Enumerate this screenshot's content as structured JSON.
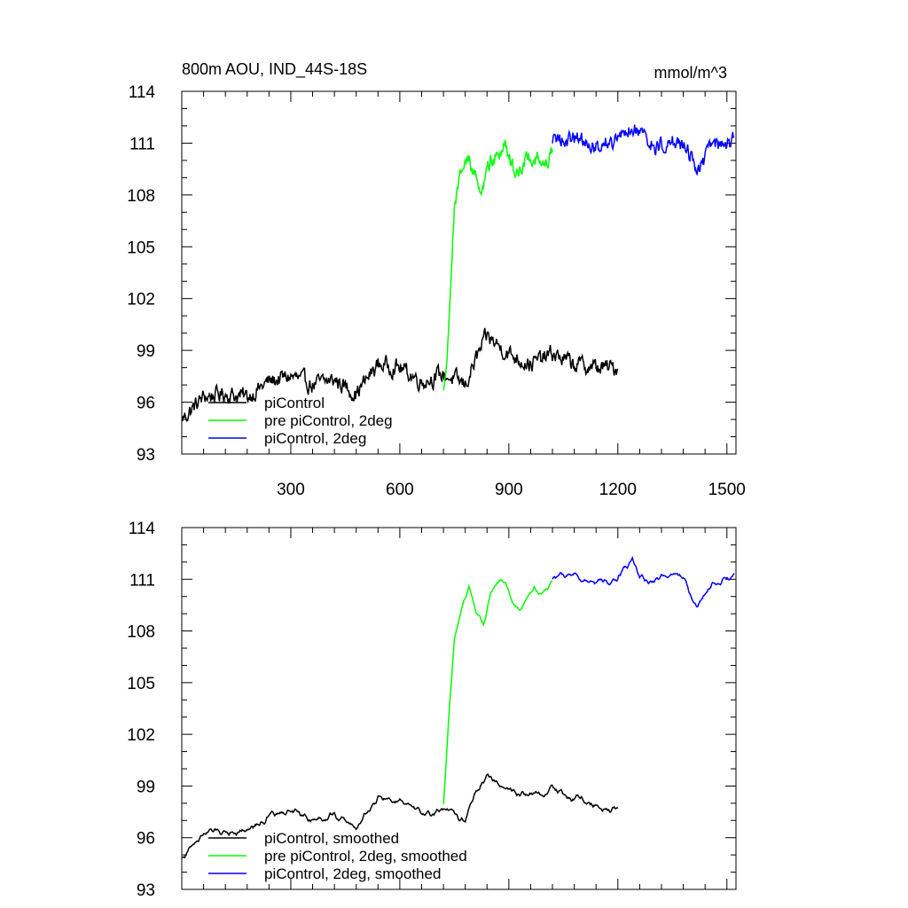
{
  "chart_data": [
    {
      "type": "line",
      "title": "800m AOU, IND_44S-18S",
      "units": "mmol/m^3",
      "xlim": [
        0,
        1525
      ],
      "ylim": [
        93,
        114
      ],
      "yticks": [
        93,
        96,
        99,
        102,
        105,
        108,
        111,
        114
      ],
      "xticks": [
        300,
        600,
        900,
        1200,
        1500
      ],
      "series": [
        {
          "name": "piControl",
          "color": "#000000",
          "x_range": [
            0,
            1200
          ],
          "x": [
            0,
            60,
            120,
            180,
            240,
            300,
            360,
            420,
            480,
            540,
            600,
            660,
            720,
            780,
            810,
            840,
            900,
            960,
            1020,
            1080,
            1140,
            1200
          ],
          "y": [
            95.0,
            96.3,
            96.5,
            96.3,
            97.2,
            97.5,
            97.0,
            97.3,
            96.5,
            98.2,
            98.0,
            97.2,
            97.6,
            97.0,
            98.5,
            99.8,
            98.8,
            98.2,
            98.8,
            98.2,
            98.0,
            98.0
          ],
          "noise": 0.75
        },
        {
          "name": "pre piControl, 2deg",
          "color": "#00ff00",
          "x_range": [
            720,
            1020
          ],
          "x": [
            720,
            730,
            740,
            750,
            770,
            790,
            810,
            830,
            850,
            870,
            890,
            910,
            930,
            950,
            970,
            990,
            1010,
            1020
          ],
          "y": [
            97.0,
            99.0,
            103.0,
            107.5,
            109.5,
            110.2,
            109.2,
            108.3,
            110.0,
            110.5,
            111.0,
            109.5,
            109.5,
            110.0,
            110.4,
            109.9,
            110.3,
            110.8
          ],
          "noise": 0.75
        },
        {
          "name": "piControl, 2deg",
          "color": "#0000ff",
          "x_range": [
            1020,
            1520
          ],
          "x": [
            1020,
            1080,
            1140,
            1200,
            1240,
            1260,
            1300,
            1340,
            1380,
            1420,
            1460,
            1500,
            1520
          ],
          "y": [
            111.0,
            111.3,
            110.8,
            111.2,
            112.0,
            111.5,
            110.8,
            111.2,
            111.0,
            109.5,
            110.8,
            110.9,
            111.2
          ],
          "noise": 0.75
        }
      ],
      "legend": [
        "piControl",
        "pre piControl, 2deg",
        "piControl, 2deg"
      ],
      "legend_position": "lower-left"
    },
    {
      "type": "line",
      "xlim": [
        0,
        1525
      ],
      "ylim": [
        93,
        114
      ],
      "yticks": [
        93,
        96,
        99,
        102,
        105,
        108,
        111,
        114
      ],
      "series": [
        {
          "name": "piControl, smoothed",
          "color": "#000000",
          "x_range": [
            0,
            1200
          ],
          "x": [
            0,
            60,
            120,
            180,
            240,
            300,
            360,
            420,
            480,
            540,
            600,
            660,
            720,
            780,
            810,
            840,
            900,
            960,
            1020,
            1080,
            1140,
            1200
          ],
          "y": [
            94.8,
            96.3,
            96.4,
            96.5,
            97.2,
            97.6,
            97.1,
            97.3,
            96.6,
            98.3,
            98.1,
            97.3,
            97.6,
            97.0,
            98.8,
            99.6,
            98.9,
            98.4,
            98.8,
            98.3,
            98.0,
            97.5
          ],
          "noise": 0.35
        },
        {
          "name": "pre piControl, 2deg, smoothed",
          "color": "#00ff00",
          "x_range": [
            720,
            1020
          ],
          "x": [
            720,
            735,
            750,
            770,
            790,
            810,
            830,
            850,
            870,
            890,
            910,
            930,
            950,
            970,
            990,
            1010,
            1020
          ],
          "y": [
            98.0,
            103.0,
            107.5,
            109.5,
            110.6,
            109.2,
            108.3,
            110.3,
            110.7,
            111.0,
            109.5,
            109.5,
            110.0,
            110.5,
            110.0,
            110.5,
            111.0
          ],
          "noise": 0.3
        },
        {
          "name": "piControl, 2deg, smoothed",
          "color": "#0000ff",
          "x_range": [
            1020,
            1520
          ],
          "x": [
            1020,
            1080,
            1140,
            1200,
            1240,
            1260,
            1300,
            1340,
            1380,
            1420,
            1460,
            1500,
            1520
          ],
          "y": [
            111.0,
            111.3,
            110.7,
            111.1,
            112.2,
            111.3,
            110.9,
            111.3,
            111.0,
            109.4,
            110.8,
            111.0,
            111.4
          ],
          "noise": 0.35
        }
      ],
      "legend": [
        "piControl, smoothed",
        "pre piControl, 2deg, smoothed",
        "piControl, 2deg, smoothed"
      ],
      "legend_position": "lower-left"
    }
  ]
}
